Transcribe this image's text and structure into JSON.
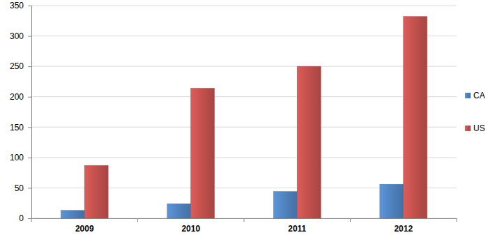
{
  "chart_data": {
    "type": "bar",
    "categories": [
      "2009",
      "2010",
      "2011",
      "2012"
    ],
    "series": [
      {
        "name": "CA",
        "color": "#4f81bd",
        "values": [
          13,
          24,
          44,
          56
        ]
      },
      {
        "name": "US",
        "color": "#c0504d",
        "values": [
          87,
          214,
          250,
          332
        ]
      }
    ],
    "ylim": [
      0,
      350
    ],
    "yticks": [
      0,
      50,
      100,
      150,
      200,
      250,
      300,
      350
    ],
    "grid": true,
    "legend": "right"
  }
}
